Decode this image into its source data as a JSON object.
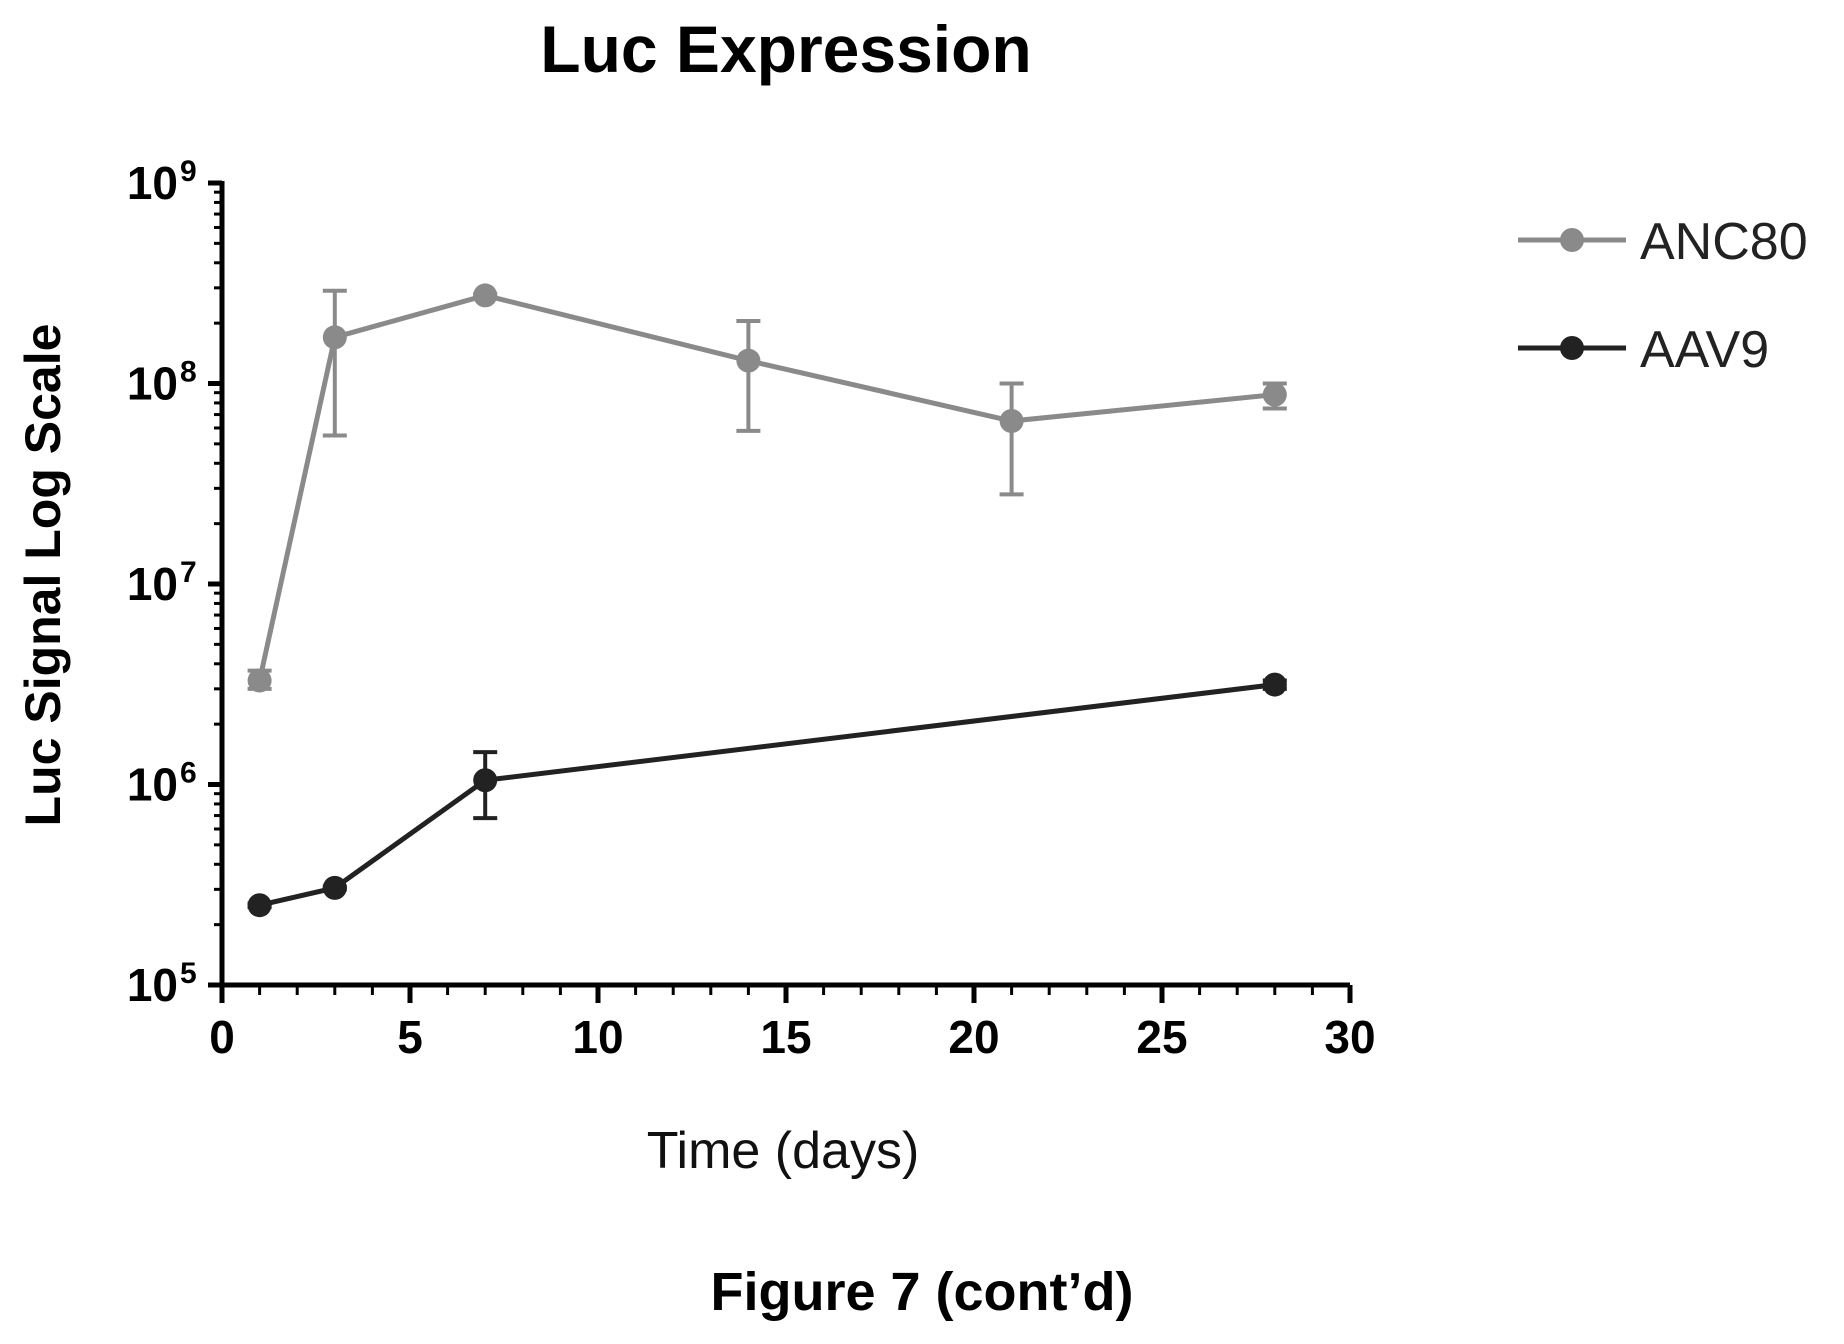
{
  "figure_caption": "Figure 7 (cont’d)",
  "chart_data": {
    "type": "line",
    "title": "Luc Expression",
    "xlabel": "Time (days)",
    "ylabel": "Luc Signal Log Scale",
    "xlim": [
      0,
      30
    ],
    "ylim": [
      100000,
      1000000000
    ],
    "yscale": "log",
    "xticks": [
      0,
      5,
      10,
      15,
      20,
      25,
      30
    ],
    "xtick_labels": [
      "0",
      "5",
      "10",
      "15",
      "20",
      "25",
      "30"
    ],
    "yticks": [
      100000,
      1000000,
      10000000,
      100000000,
      1000000000
    ],
    "ytick_bases": [
      "10",
      "10",
      "10",
      "10",
      "10"
    ],
    "ytick_exponents": [
      "5",
      "6",
      "7",
      "8",
      "9"
    ],
    "grid": false,
    "legend_position": "right",
    "series": [
      {
        "name": "ANC80",
        "color": "#8a8a8a",
        "x": [
          1,
          3,
          7,
          14,
          21,
          28
        ],
        "y": [
          3300000,
          170000000,
          275000000,
          130000000,
          65000000,
          88000000
        ],
        "err_low": [
          3000000,
          55000000,
          270000000,
          58000000,
          28000000,
          75000000
        ],
        "err_high": [
          3700000,
          290000000,
          280000000,
          205000000,
          100000000,
          100000000
        ]
      },
      {
        "name": "AAV9",
        "color": "#222222",
        "x": [
          1,
          3,
          7,
          28
        ],
        "y": [
          250000,
          305000,
          1050000,
          3150000
        ],
        "err_low": [
          245000,
          300000,
          680000,
          3000000
        ],
        "err_high": [
          255000,
          310000,
          1450000,
          3300000
        ]
      }
    ]
  }
}
